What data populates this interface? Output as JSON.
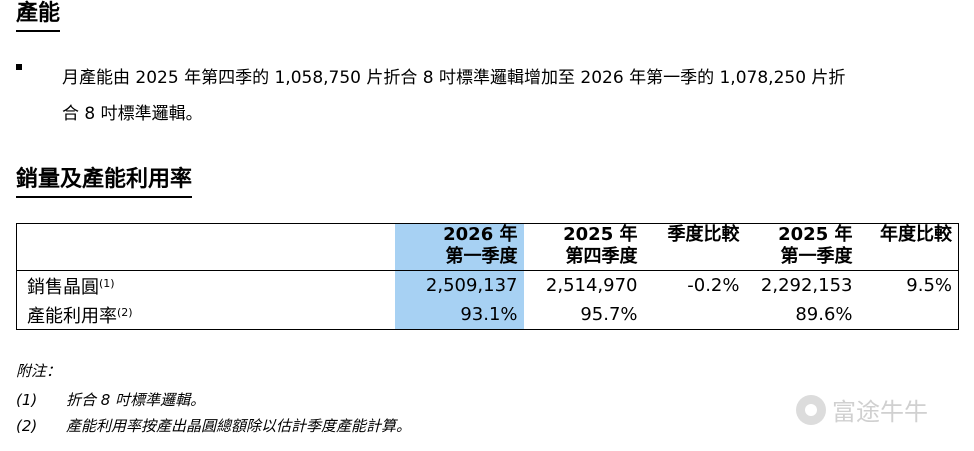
{
  "section1": {
    "title": "產能",
    "bullet": "月產能由 2025 年第四季的 1,058,750 片折合 8 吋標準邏輯增加至 2026 年第一季的 1,078,250 片折",
    "bullet_cont": "合 8 吋標準邏輯。"
  },
  "section2": {
    "title": "銷量及產能利用率"
  },
  "table": {
    "headers": [
      {
        "line1": "2026 年",
        "line2": "第一季度"
      },
      {
        "line1": "2025 年",
        "line2": "第四季度"
      },
      {
        "line1": "季度比較",
        "line2": ""
      },
      {
        "line1": "2025 年",
        "line2": "第一季度"
      },
      {
        "line1": "年度比較",
        "line2": ""
      }
    ],
    "rows": [
      {
        "label": "銷售晶圓",
        "note": "(1)",
        "cells": [
          "2,509,137",
          "2,514,970",
          "-0.2%",
          "2,292,153",
          "9.5%"
        ]
      },
      {
        "label": "產能利用率",
        "note": "(2)",
        "cells": [
          "93.1%",
          "95.7%",
          "",
          "89.6%",
          ""
        ]
      }
    ]
  },
  "notes": {
    "title": "附注：",
    "items": [
      {
        "num": "(1)",
        "text": "折合 8 吋標準邏輯。"
      },
      {
        "num": "(2)",
        "text": "產能利用率按產出晶圓總額除以估計季度產能計算。"
      }
    ]
  },
  "watermark": {
    "text": "富途牛牛",
    "icon": "futu-logo-icon"
  },
  "colors": {
    "highlight": "#a7d1f3"
  }
}
